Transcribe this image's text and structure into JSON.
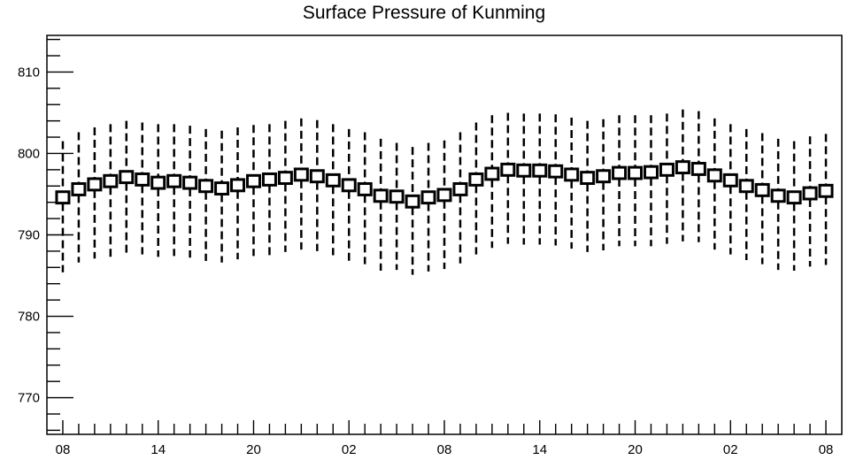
{
  "chart_data": {
    "type": "box",
    "title": "Surface Pressure of Kunming",
    "xlabel": "",
    "ylabel": "",
    "ylim": [
      765.5,
      814.5
    ],
    "yticks": [
      770,
      780,
      790,
      800,
      810
    ],
    "xtick_labels": [
      "08",
      "14",
      "20",
      "02",
      "08",
      "14",
      "20",
      "02",
      "08"
    ],
    "x_hours": [
      0,
      6,
      12,
      18,
      24,
      30,
      36,
      42,
      48
    ],
    "xlim": [
      -1,
      49
    ],
    "grid": false,
    "legend": "none",
    "series": [
      {
        "x": [
          0,
          1,
          2,
          3,
          4,
          5,
          6,
          7,
          8,
          9,
          10,
          11,
          12,
          13,
          14,
          15,
          16,
          17,
          18,
          19,
          20,
          21,
          22,
          23,
          24,
          25,
          26,
          27,
          28,
          29,
          30,
          31,
          32,
          33,
          34,
          35,
          36,
          37,
          38,
          39,
          40,
          41,
          42,
          43,
          44,
          45,
          46,
          47,
          48
        ],
        "mid": [
          794.6,
          795.6,
          796.2,
          796.6,
          797.1,
          796.8,
          796.4,
          796.6,
          796.4,
          796.0,
          795.7,
          796.1,
          796.6,
          796.8,
          797.0,
          797.4,
          797.2,
          796.7,
          796.1,
          795.6,
          794.8,
          794.7,
          794.1,
          794.6,
          794.9,
          795.6,
          796.8,
          797.5,
          798.0,
          797.9,
          797.9,
          797.8,
          797.4,
          797.0,
          797.2,
          797.6,
          797.6,
          797.7,
          798.0,
          798.3,
          798.1,
          797.3,
          796.7,
          796.0,
          795.5,
          794.8,
          794.6,
          795.1,
          795.4
        ],
        "box_half": [
          0.7,
          0.7,
          0.7,
          0.7,
          0.7,
          0.7,
          0.7,
          0.7,
          0.7,
          0.7,
          0.7,
          0.7,
          0.7,
          0.7,
          0.7,
          0.7,
          0.7,
          0.7,
          0.7,
          0.7,
          0.7,
          0.7,
          0.7,
          0.7,
          0.7,
          0.7,
          0.7,
          0.7,
          0.7,
          0.7,
          0.7,
          0.7,
          0.7,
          0.7,
          0.7,
          0.7,
          0.7,
          0.7,
          0.7,
          0.7,
          0.7,
          0.7,
          0.7,
          0.7,
          0.7,
          0.7,
          0.7,
          0.7,
          0.7
        ],
        "whisker_high": [
          801.5,
          802.6,
          803.2,
          803.6,
          804.0,
          803.8,
          803.6,
          803.6,
          803.4,
          803.0,
          802.8,
          803.2,
          803.5,
          803.6,
          804.0,
          804.3,
          804.1,
          803.6,
          803.0,
          802.6,
          801.8,
          801.3,
          800.8,
          801.3,
          801.6,
          802.6,
          803.8,
          804.7,
          805.0,
          804.9,
          804.9,
          804.8,
          804.4,
          804.0,
          804.2,
          804.7,
          804.7,
          804.7,
          804.9,
          805.4,
          805.2,
          804.3,
          803.6,
          803.0,
          802.5,
          801.8,
          801.5,
          802.1,
          802.4
        ],
        "whisker_low": [
          785.4,
          786.6,
          787.1,
          787.3,
          787.8,
          787.6,
          787.3,
          787.4,
          787.2,
          786.8,
          786.6,
          787.0,
          787.4,
          787.5,
          787.9,
          788.2,
          788.0,
          787.5,
          786.8,
          786.4,
          785.6,
          785.7,
          785.1,
          785.5,
          785.8,
          786.5,
          787.6,
          788.4,
          788.9,
          788.8,
          788.8,
          788.7,
          788.3,
          787.9,
          788.1,
          788.6,
          788.6,
          788.6,
          788.9,
          789.2,
          789.1,
          788.2,
          787.6,
          786.9,
          786.4,
          785.7,
          785.6,
          786.1,
          786.3
        ]
      }
    ]
  }
}
